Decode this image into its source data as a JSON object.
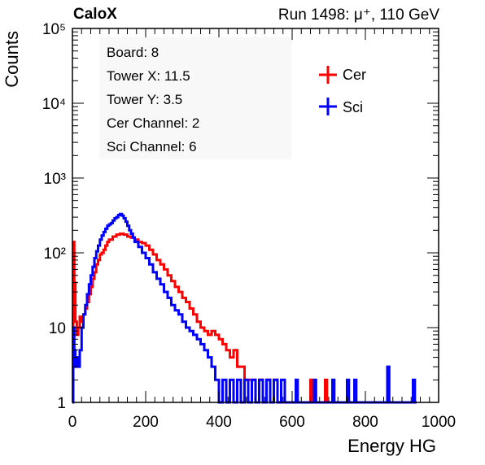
{
  "header": {
    "brand": "CaloX",
    "run_text": "Run 1498:   μ⁺, 110 GeV"
  },
  "info": {
    "lines": [
      "Board: 8",
      "Tower X: 11.5",
      "Tower Y: 3.5",
      "Cer Channel: 2",
      "Sci Channel: 6"
    ]
  },
  "chart_data": {
    "type": "line",
    "xlabel": "Energy HG",
    "ylabel": "Counts",
    "xlim": [
      0,
      1000
    ],
    "ylim": [
      1,
      100000
    ],
    "yscale": "log",
    "grid": false,
    "legend_position": "top-right",
    "x_ticks": [
      "0",
      "200",
      "400",
      "600",
      "800",
      "1000"
    ],
    "y_ticks": [
      {
        "value": 1,
        "label": "1"
      },
      {
        "value": 10,
        "label": "10"
      },
      {
        "value": 100,
        "label": "10²"
      },
      {
        "value": 1000,
        "label": "10³"
      },
      {
        "value": 10000,
        "label": "10⁴"
      },
      {
        "value": 100000,
        "label": "10⁵"
      }
    ],
    "series": [
      {
        "name": "Cer",
        "color": "#ff0000",
        "style": "step",
        "points": [
          [
            0,
            1
          ],
          [
            2,
            140
          ],
          [
            5,
            40
          ],
          [
            8,
            12
          ],
          [
            12,
            8
          ],
          [
            16,
            10
          ],
          [
            20,
            14
          ],
          [
            25,
            12
          ],
          [
            30,
            15
          ],
          [
            35,
            18
          ],
          [
            40,
            22
          ],
          [
            45,
            28
          ],
          [
            50,
            35
          ],
          [
            55,
            45
          ],
          [
            60,
            55
          ],
          [
            65,
            70
          ],
          [
            70,
            80
          ],
          [
            75,
            95
          ],
          [
            80,
            100
          ],
          [
            85,
            110
          ],
          [
            90,
            125
          ],
          [
            95,
            140
          ],
          [
            100,
            150
          ],
          [
            110,
            165
          ],
          [
            120,
            175
          ],
          [
            130,
            180
          ],
          [
            140,
            175
          ],
          [
            150,
            165
          ],
          [
            160,
            160
          ],
          [
            170,
            150
          ],
          [
            180,
            140
          ],
          [
            190,
            135
          ],
          [
            200,
            125
          ],
          [
            210,
            110
          ],
          [
            220,
            95
          ],
          [
            230,
            80
          ],
          [
            240,
            70
          ],
          [
            250,
            60
          ],
          [
            260,
            50
          ],
          [
            270,
            42
          ],
          [
            280,
            35
          ],
          [
            290,
            30
          ],
          [
            300,
            25
          ],
          [
            310,
            22
          ],
          [
            320,
            18
          ],
          [
            330,
            15
          ],
          [
            340,
            12
          ],
          [
            350,
            10
          ],
          [
            360,
            9
          ],
          [
            370,
            8
          ],
          [
            380,
            9
          ],
          [
            390,
            8
          ],
          [
            400,
            7
          ],
          [
            410,
            6
          ],
          [
            420,
            5
          ],
          [
            430,
            4
          ],
          [
            440,
            5
          ],
          [
            450,
            3
          ],
          [
            460,
            3
          ],
          [
            470,
            2
          ],
          [
            480,
            2
          ],
          [
            490,
            2
          ],
          [
            500,
            1
          ],
          [
            510,
            2
          ],
          [
            520,
            1
          ],
          [
            530,
            2
          ],
          [
            540,
            1
          ],
          [
            550,
            2
          ],
          [
            560,
            1
          ],
          [
            650,
            2
          ],
          [
            655,
            1
          ],
          [
            690,
            2
          ],
          [
            695,
            1
          ]
        ]
      },
      {
        "name": "Sci",
        "color": "#0000ff",
        "style": "step",
        "points": [
          [
            0,
            1
          ],
          [
            2,
            10
          ],
          [
            5,
            5
          ],
          [
            8,
            3
          ],
          [
            12,
            4
          ],
          [
            16,
            3
          ],
          [
            20,
            5
          ],
          [
            25,
            10
          ],
          [
            30,
            15
          ],
          [
            35,
            20
          ],
          [
            40,
            28
          ],
          [
            45,
            38
          ],
          [
            50,
            50
          ],
          [
            55,
            65
          ],
          [
            60,
            85
          ],
          [
            65,
            105
          ],
          [
            70,
            125
          ],
          [
            75,
            150
          ],
          [
            80,
            170
          ],
          [
            85,
            190
          ],
          [
            90,
            210
          ],
          [
            95,
            230
          ],
          [
            100,
            240
          ],
          [
            105,
            250
          ],
          [
            110,
            270
          ],
          [
            115,
            290
          ],
          [
            120,
            300
          ],
          [
            125,
            320
          ],
          [
            130,
            330
          ],
          [
            135,
            315
          ],
          [
            140,
            290
          ],
          [
            145,
            260
          ],
          [
            150,
            230
          ],
          [
            155,
            200
          ],
          [
            160,
            180
          ],
          [
            165,
            160
          ],
          [
            170,
            140
          ],
          [
            180,
            120
          ],
          [
            190,
            100
          ],
          [
            200,
            85
          ],
          [
            210,
            70
          ],
          [
            220,
            55
          ],
          [
            230,
            45
          ],
          [
            240,
            38
          ],
          [
            250,
            30
          ],
          [
            260,
            25
          ],
          [
            270,
            20
          ],
          [
            280,
            17
          ],
          [
            290,
            15
          ],
          [
            300,
            12
          ],
          [
            310,
            10
          ],
          [
            320,
            9
          ],
          [
            330,
            8
          ],
          [
            340,
            7
          ],
          [
            350,
            6
          ],
          [
            360,
            5
          ],
          [
            370,
            4
          ],
          [
            380,
            3
          ],
          [
            390,
            2
          ],
          [
            400,
            1
          ],
          [
            410,
            2
          ],
          [
            420,
            1
          ],
          [
            430,
            2
          ],
          [
            440,
            1
          ],
          [
            450,
            2
          ],
          [
            460,
            1
          ],
          [
            470,
            2
          ],
          [
            480,
            1
          ],
          [
            490,
            2
          ],
          [
            500,
            1
          ],
          [
            510,
            2
          ],
          [
            520,
            1
          ],
          [
            530,
            2
          ],
          [
            540,
            1
          ],
          [
            550,
            2
          ],
          [
            560,
            1
          ],
          [
            570,
            2
          ],
          [
            580,
            1
          ],
          [
            610,
            2
          ],
          [
            615,
            1
          ],
          [
            660,
            2
          ],
          [
            665,
            1
          ],
          [
            710,
            2
          ],
          [
            715,
            1
          ],
          [
            750,
            2
          ],
          [
            755,
            1
          ],
          [
            770,
            2
          ],
          [
            775,
            1
          ],
          [
            860,
            3
          ],
          [
            865,
            1
          ],
          [
            930,
            2
          ],
          [
            935,
            1
          ]
        ]
      }
    ]
  }
}
